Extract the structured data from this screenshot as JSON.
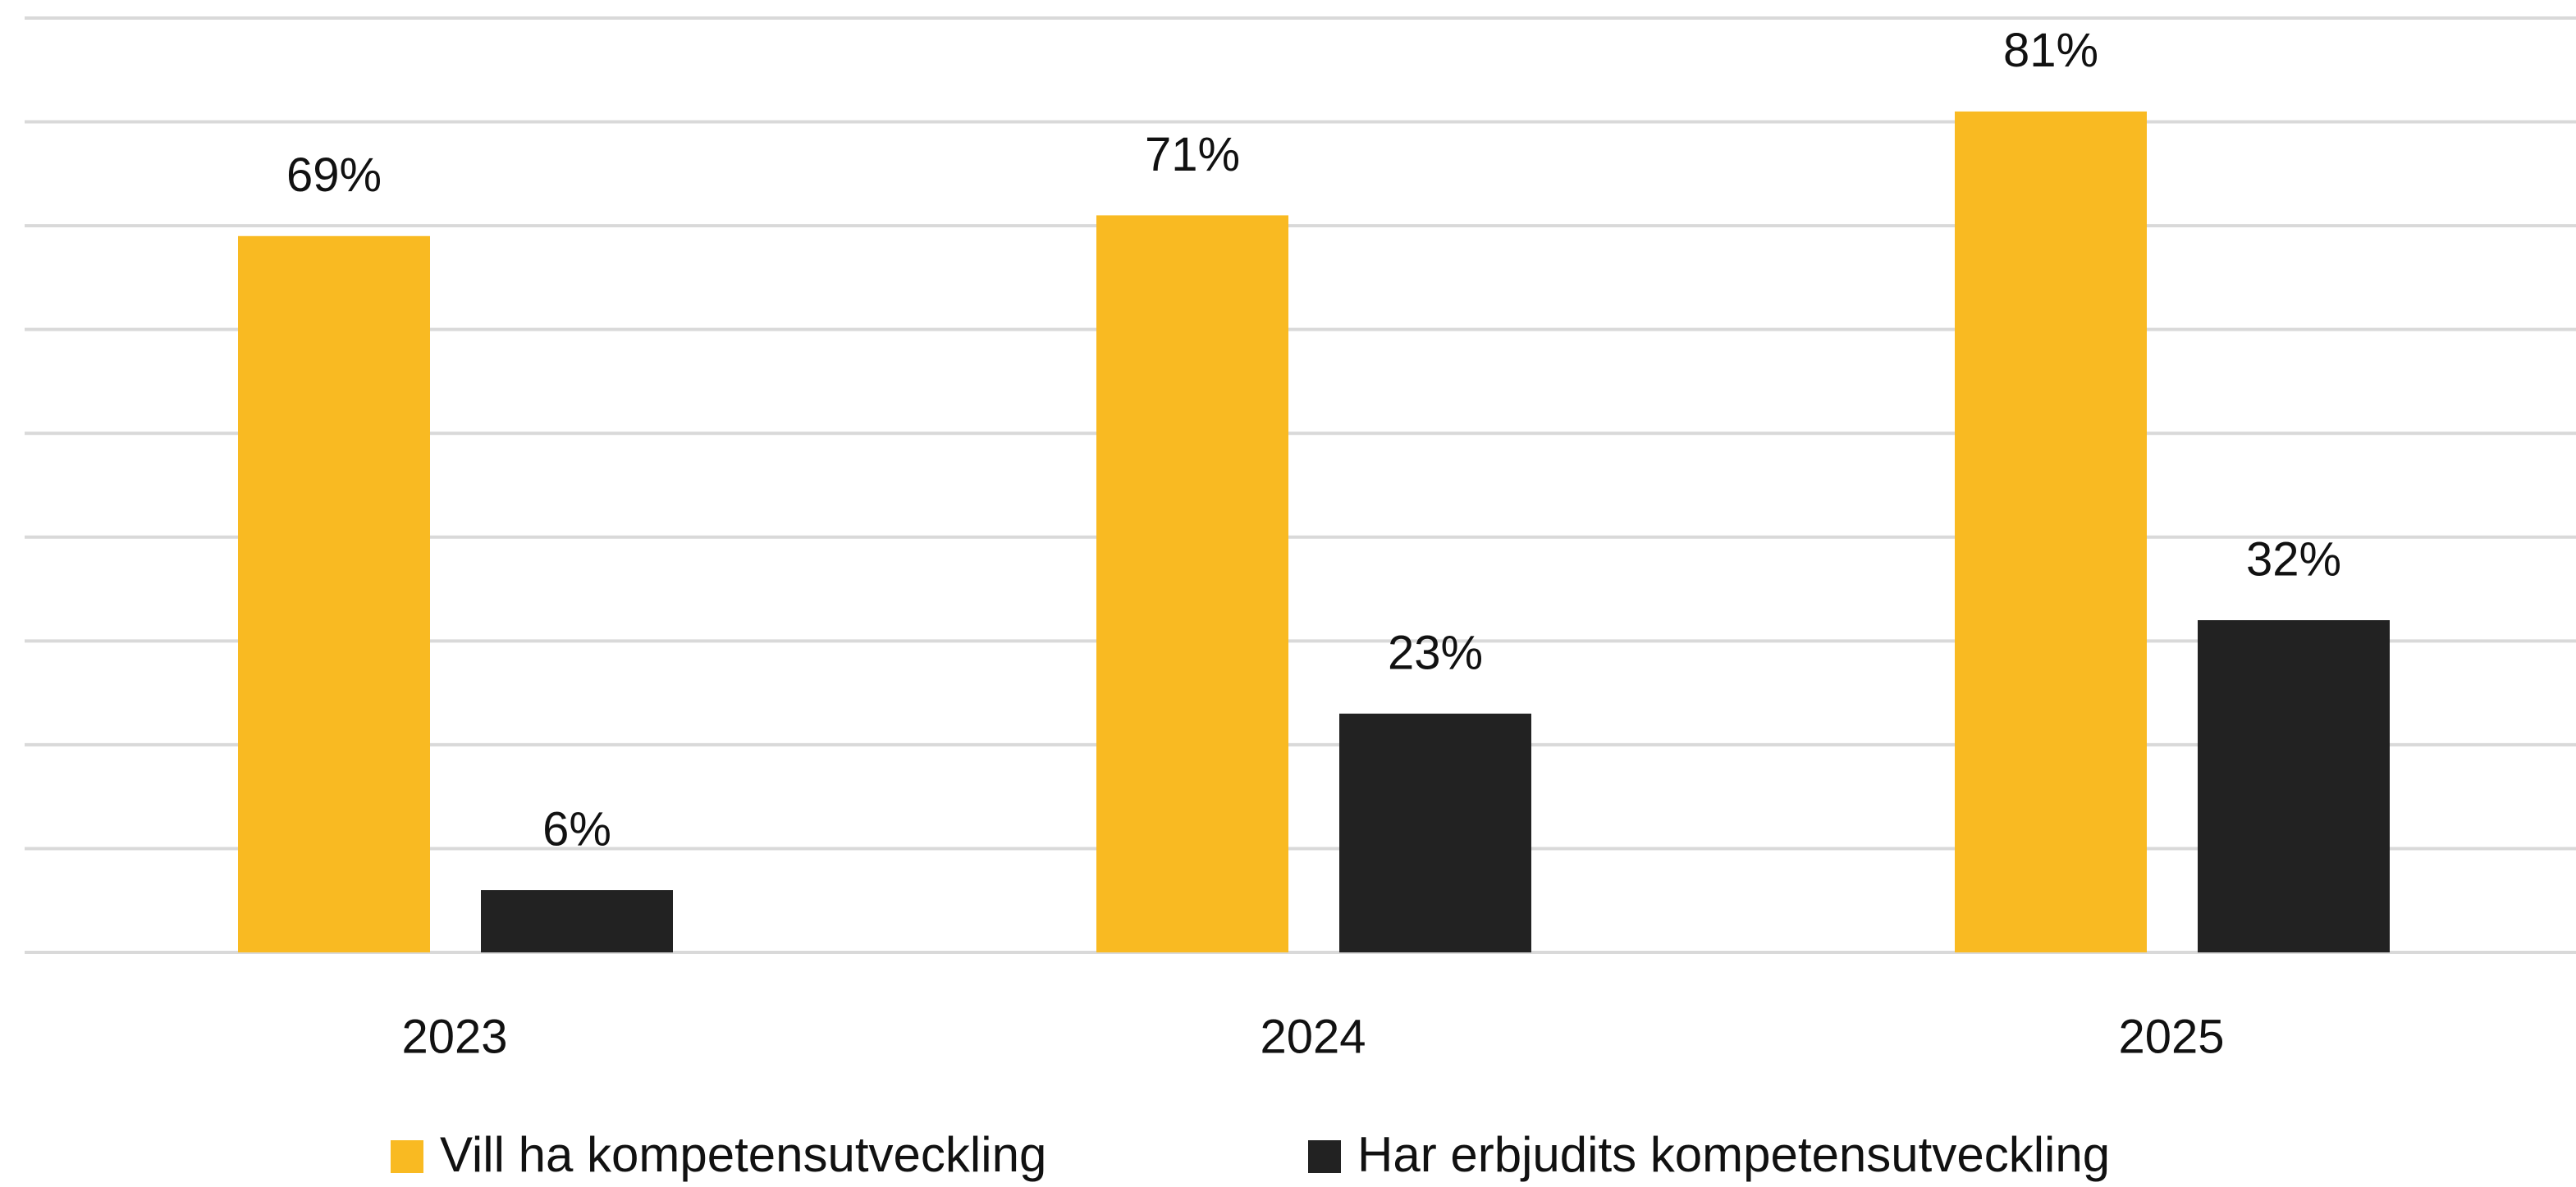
{
  "chart_data": {
    "type": "bar",
    "categories": [
      "2023",
      "2024",
      "2025"
    ],
    "series": [
      {
        "name": "Vill ha kompetensutveckling",
        "color": "#f9ba22",
        "values": [
          69,
          71,
          81
        ],
        "value_labels": [
          "69%",
          "71%",
          "81%"
        ]
      },
      {
        "name": "Har erbjudits kompetensutveckling",
        "color": "#222222",
        "values": [
          6,
          23,
          32
        ],
        "value_labels": [
          "6%",
          "23%",
          "32%"
        ]
      }
    ],
    "ylim": [
      0,
      90
    ],
    "yticks": [
      0,
      10,
      20,
      30,
      40,
      50,
      60,
      70,
      80,
      90
    ],
    "grid": true,
    "legend": "bottom"
  }
}
